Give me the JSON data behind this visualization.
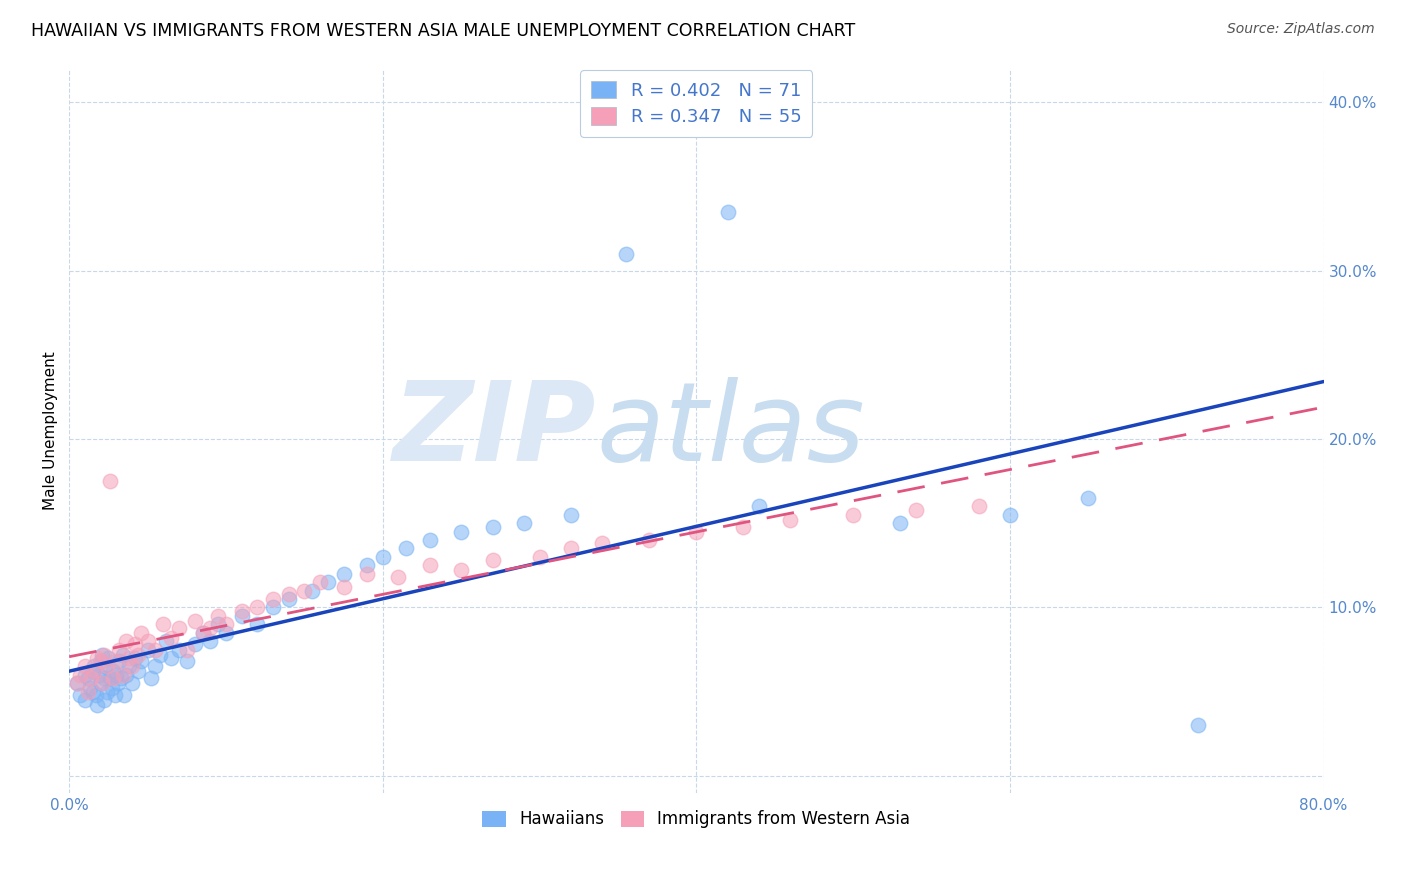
{
  "title": "HAWAIIAN VS IMMIGRANTS FROM WESTERN ASIA MALE UNEMPLOYMENT CORRELATION CHART",
  "source": "Source: ZipAtlas.com",
  "ylabel": "Male Unemployment",
  "xlim": [
    0,
    0.8
  ],
  "ylim": [
    -0.01,
    0.42
  ],
  "xticks": [
    0.0,
    0.2,
    0.4,
    0.6,
    0.8
  ],
  "yticks": [
    0.0,
    0.1,
    0.2,
    0.3,
    0.4
  ],
  "xticklabels": [
    "0.0%",
    "",
    "",
    "",
    "80.0%"
  ],
  "yticklabels": [
    "",
    "10.0%",
    "20.0%",
    "30.0%",
    "40.0%"
  ],
  "hawaiians_x": [
    0.005,
    0.007,
    0.01,
    0.01,
    0.012,
    0.013,
    0.015,
    0.015,
    0.016,
    0.017,
    0.018,
    0.019,
    0.02,
    0.02,
    0.021,
    0.022,
    0.022,
    0.023,
    0.024,
    0.025,
    0.026,
    0.027,
    0.028,
    0.029,
    0.03,
    0.031,
    0.032,
    0.033,
    0.034,
    0.035,
    0.036,
    0.038,
    0.04,
    0.042,
    0.044,
    0.046,
    0.05,
    0.052,
    0.055,
    0.058,
    0.062,
    0.065,
    0.07,
    0.075,
    0.08,
    0.085,
    0.09,
    0.095,
    0.1,
    0.11,
    0.12,
    0.13,
    0.14,
    0.155,
    0.165,
    0.175,
    0.19,
    0.2,
    0.215,
    0.23,
    0.25,
    0.27,
    0.29,
    0.32,
    0.355,
    0.42,
    0.44,
    0.53,
    0.6,
    0.65,
    0.72
  ],
  "hawaiians_y": [
    0.055,
    0.048,
    0.06,
    0.045,
    0.058,
    0.052,
    0.062,
    0.05,
    0.065,
    0.048,
    0.042,
    0.06,
    0.055,
    0.068,
    0.072,
    0.058,
    0.045,
    0.065,
    0.05,
    0.07,
    0.058,
    0.052,
    0.062,
    0.048,
    0.06,
    0.055,
    0.068,
    0.058,
    0.072,
    0.048,
    0.06,
    0.065,
    0.055,
    0.07,
    0.062,
    0.068,
    0.075,
    0.058,
    0.065,
    0.072,
    0.08,
    0.07,
    0.075,
    0.068,
    0.078,
    0.085,
    0.08,
    0.09,
    0.085,
    0.095,
    0.09,
    0.1,
    0.105,
    0.11,
    0.115,
    0.12,
    0.125,
    0.13,
    0.135,
    0.14,
    0.145,
    0.148,
    0.15,
    0.155,
    0.31,
    0.335,
    0.16,
    0.15,
    0.155,
    0.165,
    0.03
  ],
  "western_asia_x": [
    0.005,
    0.007,
    0.01,
    0.012,
    0.014,
    0.016,
    0.018,
    0.02,
    0.021,
    0.022,
    0.024,
    0.026,
    0.028,
    0.03,
    0.032,
    0.034,
    0.036,
    0.038,
    0.04,
    0.042,
    0.044,
    0.046,
    0.05,
    0.055,
    0.06,
    0.065,
    0.07,
    0.075,
    0.08,
    0.085,
    0.09,
    0.095,
    0.1,
    0.11,
    0.12,
    0.13,
    0.14,
    0.15,
    0.16,
    0.175,
    0.19,
    0.21,
    0.23,
    0.25,
    0.27,
    0.3,
    0.32,
    0.34,
    0.37,
    0.4,
    0.43,
    0.46,
    0.5,
    0.54,
    0.58
  ],
  "western_asia_y": [
    0.055,
    0.06,
    0.065,
    0.05,
    0.058,
    0.062,
    0.07,
    0.068,
    0.055,
    0.072,
    0.065,
    0.175,
    0.058,
    0.068,
    0.075,
    0.06,
    0.08,
    0.07,
    0.065,
    0.078,
    0.072,
    0.085,
    0.08,
    0.075,
    0.09,
    0.082,
    0.088,
    0.075,
    0.092,
    0.085,
    0.088,
    0.095,
    0.09,
    0.098,
    0.1,
    0.105,
    0.108,
    0.11,
    0.115,
    0.112,
    0.12,
    0.118,
    0.125,
    0.122,
    0.128,
    0.13,
    0.135,
    0.138,
    0.14,
    0.145,
    0.148,
    0.152,
    0.155,
    0.158,
    0.16
  ],
  "hawaiians_color": "#7ab3f5",
  "western_asia_color": "#f5a0b8",
  "trendline_blue_color": "#1a44bb",
  "trendline_pink_color": "#e05580",
  "grid_color": "#c8d8e8",
  "background_color": "#ffffff",
  "watermark_zip": "ZIP",
  "watermark_atlas": "atlas",
  "watermark_color_zip": "#dce8f5",
  "watermark_color_atlas": "#c8ddf0",
  "title_fontsize": 12.5,
  "axis_label_fontsize": 11,
  "tick_fontsize": 11,
  "source_fontsize": 10,
  "tick_color": "#5588cc",
  "legend_label_color": "#4477cc"
}
